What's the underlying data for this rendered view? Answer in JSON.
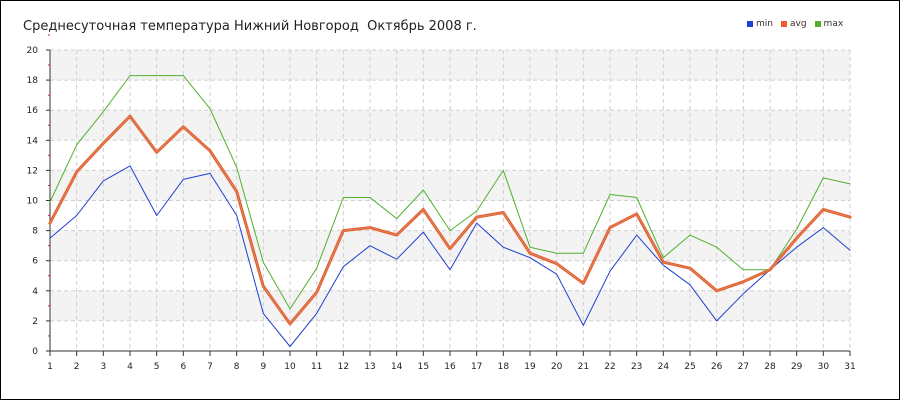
{
  "chart_data": {
    "type": "line",
    "title": "Среднесуточная температура Нижний Новгород  Октябрь 2008 г.",
    "xlabel": "",
    "ylabel": "",
    "x": [
      1,
      2,
      3,
      4,
      5,
      6,
      7,
      8,
      9,
      10,
      11,
      12,
      13,
      14,
      15,
      16,
      17,
      18,
      19,
      20,
      21,
      22,
      23,
      24,
      25,
      26,
      27,
      28,
      29,
      30,
      31
    ],
    "ylim": [
      0,
      20
    ],
    "yticks": [
      0,
      2,
      4,
      6,
      8,
      10,
      12,
      14,
      16,
      18,
      20
    ],
    "grid": true,
    "legend_position": "top-right",
    "series": [
      {
        "name": "min",
        "color": "#2040d0",
        "values": [
          7.5,
          9.0,
          11.3,
          12.3,
          9.0,
          11.4,
          11.8,
          9.0,
          2.5,
          0.3,
          2.5,
          5.6,
          7.0,
          6.1,
          7.9,
          5.4,
          8.5,
          6.9,
          6.2,
          5.1,
          1.7,
          5.3,
          7.7,
          5.7,
          4.4,
          2.0,
          3.8,
          5.4,
          6.9,
          8.2,
          6.7
        ]
      },
      {
        "name": "avg",
        "color": "#e8602c",
        "values": [
          8.5,
          11.9,
          13.8,
          15.6,
          13.2,
          14.9,
          13.3,
          10.6,
          4.3,
          1.8,
          3.9,
          8.0,
          8.2,
          7.7,
          9.4,
          6.8,
          8.9,
          9.2,
          6.5,
          5.8,
          4.5,
          8.2,
          9.1,
          5.9,
          5.5,
          4.0,
          4.6,
          5.4,
          7.5,
          9.4,
          8.9
        ]
      },
      {
        "name": "max",
        "color": "#50b030",
        "values": [
          9.9,
          13.7,
          15.9,
          18.3,
          18.3,
          18.3,
          16.1,
          12.2,
          5.9,
          2.8,
          5.5,
          10.2,
          10.2,
          8.8,
          10.7,
          8.0,
          9.3,
          12.0,
          6.9,
          6.5,
          6.5,
          10.4,
          10.2,
          6.2,
          7.7,
          6.9,
          5.4,
          5.4,
          8.1,
          11.5,
          11.1
        ]
      }
    ]
  }
}
